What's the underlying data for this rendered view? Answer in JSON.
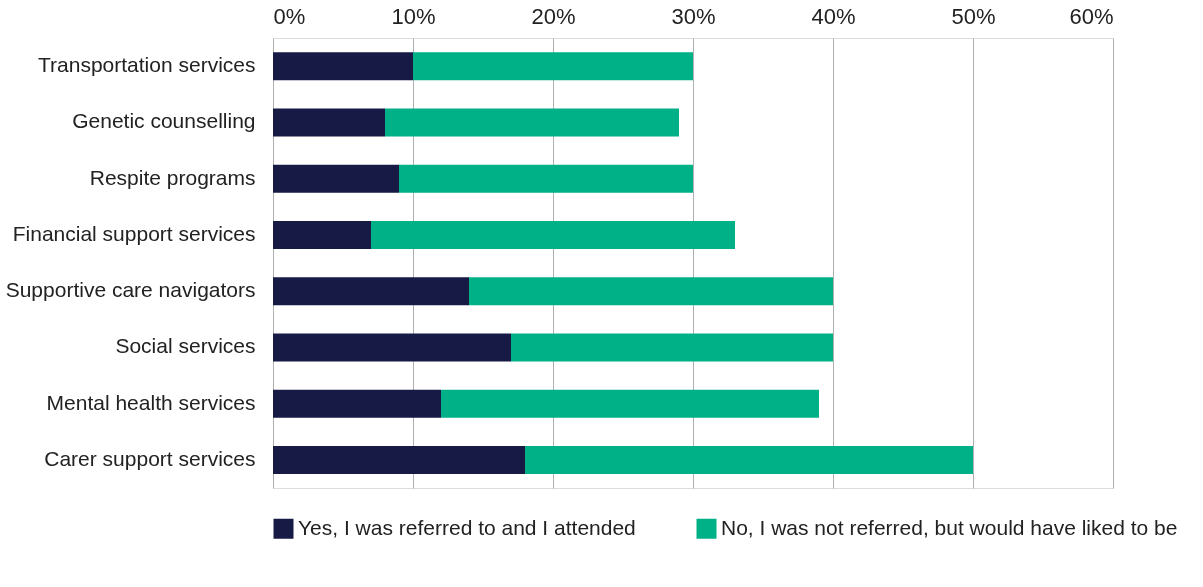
{
  "chart_data": {
    "type": "bar",
    "orientation": "horizontal",
    "stacked": true,
    "categories": [
      "Transportation services",
      "Genetic counselling",
      "Respite programs",
      "Financial support services",
      "Supportive care navigators",
      "Social services",
      "Mental health services",
      "Carer support services"
    ],
    "series": [
      {
        "name": "Yes, I was referred to and I attended",
        "color": "#161a45",
        "values": [
          10,
          8,
          9,
          7,
          14,
          17,
          12,
          18
        ]
      },
      {
        "name": "No, I was not referred, but would have liked to be",
        "color": "#00b087",
        "values": [
          20,
          21,
          21,
          26,
          26,
          23,
          27,
          32
        ]
      }
    ],
    "xlim": [
      0,
      60
    ],
    "xticks": [
      {
        "value": 0,
        "label": "0%"
      },
      {
        "value": 10,
        "label": "10%"
      },
      {
        "value": 20,
        "label": "20%"
      },
      {
        "value": 30,
        "label": "30%"
      },
      {
        "value": 40,
        "label": "40%"
      },
      {
        "value": 50,
        "label": "50%"
      },
      {
        "value": 60,
        "label": "60%"
      }
    ],
    "grid": "x",
    "legend": "bottom"
  }
}
